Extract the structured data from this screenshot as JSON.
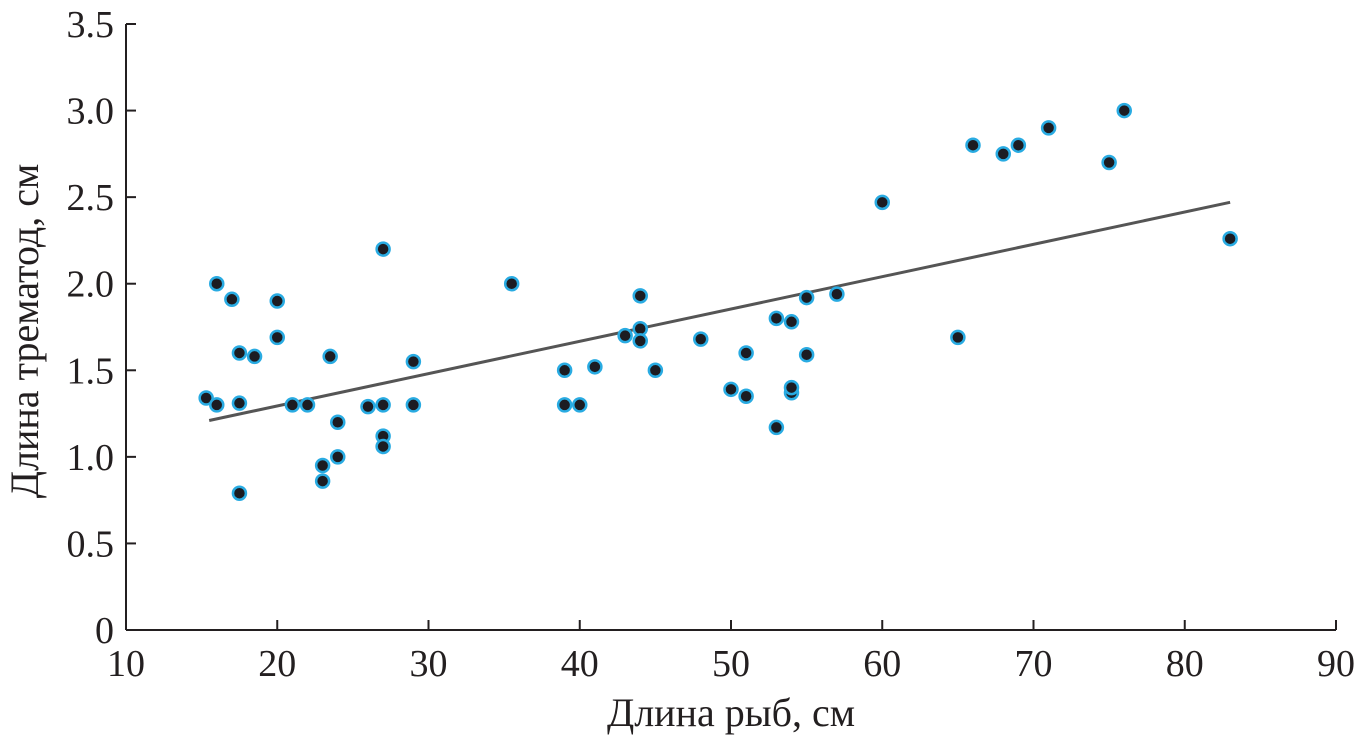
{
  "chart_data": {
    "type": "scatter",
    "title": "",
    "xlabel": "Длина рыб, см",
    "ylabel": "Длина трематод, см",
    "xlim": [
      10,
      90
    ],
    "ylim": [
      0,
      3.5
    ],
    "x_ticks": [
      "10",
      "20",
      "30",
      "40",
      "50",
      "60",
      "70",
      "80",
      "90"
    ],
    "y_ticks": [
      "0",
      "0.5",
      "1.0",
      "1.5",
      "2.0",
      "2.5",
      "3.0",
      "3.5"
    ],
    "grid": false,
    "colors": {
      "point_fill": "#1c1c22",
      "point_edge": "#29abe2",
      "trend": "#555555",
      "axis": "#231f20"
    },
    "series": [
      {
        "points": [
          [
            15.3,
            1.34
          ],
          [
            16.0,
            1.3
          ],
          [
            16.0,
            2.0
          ],
          [
            17.0,
            1.91
          ],
          [
            17.5,
            1.6
          ],
          [
            17.5,
            1.31
          ],
          [
            17.5,
            0.79
          ],
          [
            18.5,
            1.58
          ],
          [
            20.0,
            1.9
          ],
          [
            20.0,
            1.69
          ],
          [
            21.0,
            1.3
          ],
          [
            22.0,
            1.3
          ],
          [
            23.0,
            0.95
          ],
          [
            23.0,
            0.86
          ],
          [
            23.5,
            1.58
          ],
          [
            24.0,
            1.2
          ],
          [
            24.0,
            1.0
          ],
          [
            26.0,
            1.29
          ],
          [
            27.0,
            1.3
          ],
          [
            27.0,
            1.12
          ],
          [
            27.0,
            1.06
          ],
          [
            27.0,
            2.2
          ],
          [
            29.0,
            1.3
          ],
          [
            29.0,
            1.55
          ],
          [
            35.5,
            2.0
          ],
          [
            39.0,
            1.5
          ],
          [
            39.0,
            1.3
          ],
          [
            40.0,
            1.3
          ],
          [
            41.0,
            1.52
          ],
          [
            43.0,
            1.7
          ],
          [
            44.0,
            1.74
          ],
          [
            44.0,
            1.67
          ],
          [
            44.0,
            1.93
          ],
          [
            45.0,
            1.5
          ],
          [
            48.0,
            1.68
          ],
          [
            50.0,
            1.39
          ],
          [
            51.0,
            1.35
          ],
          [
            51.0,
            1.6
          ],
          [
            53.0,
            1.8
          ],
          [
            53.0,
            1.17
          ],
          [
            54.0,
            1.78
          ],
          [
            54.0,
            1.37
          ],
          [
            54.0,
            1.4
          ],
          [
            55.0,
            1.92
          ],
          [
            55.0,
            1.59
          ],
          [
            57.0,
            1.94
          ],
          [
            60.0,
            2.47
          ],
          [
            65.0,
            1.69
          ],
          [
            66.0,
            2.8
          ],
          [
            68.0,
            2.75
          ],
          [
            69.0,
            2.8
          ],
          [
            71.0,
            2.9
          ],
          [
            75.0,
            2.7
          ],
          [
            76.0,
            3.0
          ],
          [
            83.0,
            2.26
          ]
        ]
      }
    ],
    "trendline": {
      "x": [
        15.5,
        83.0
      ],
      "y": [
        1.21,
        2.47
      ]
    }
  }
}
